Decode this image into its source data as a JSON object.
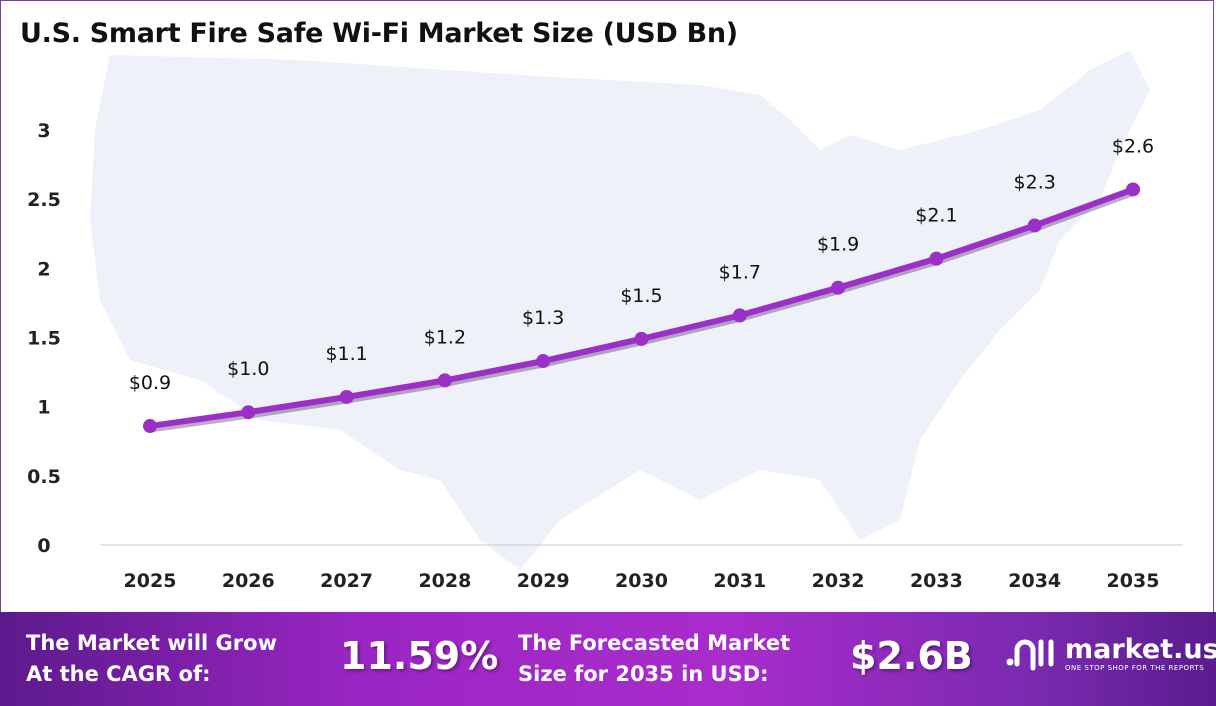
{
  "chart_data": {
    "type": "line",
    "title": "U.S. Smart Fire Safe Wi-Fi Market Size (USD Bn)",
    "xlabel": "",
    "ylabel": "",
    "categories": [
      "2025",
      "2026",
      "2027",
      "2028",
      "2029",
      "2030",
      "2031",
      "2032",
      "2033",
      "2034",
      "2035"
    ],
    "values": [
      0.86,
      0.96,
      1.07,
      1.19,
      1.33,
      1.49,
      1.66,
      1.86,
      2.07,
      2.31,
      2.57
    ],
    "data_labels": [
      "$0.9",
      "$1.0",
      "$1.1",
      "$1.2",
      "$1.3",
      "$1.5",
      "$1.7",
      "$1.9",
      "$2.1",
      "$2.3",
      "$2.6"
    ],
    "ylim": [
      0,
      3
    ],
    "yticks": [
      "0",
      "0.5",
      "1",
      "1.5",
      "2",
      "2.5",
      "3"
    ],
    "grid": false,
    "line_color": "#9b2fc8"
  },
  "banner": {
    "cagr_text_1": "The Market will Grow",
    "cagr_text_2": "At the CAGR of:",
    "cagr_value": "11.59%",
    "forecast_text_1": "The Forecasted Market",
    "forecast_text_2": "Size for 2035 in USD:",
    "forecast_value": "$2.6B",
    "logo_name": "market.us",
    "logo_tagline": "ONE STOP SHOP FOR THE REPORTS"
  }
}
